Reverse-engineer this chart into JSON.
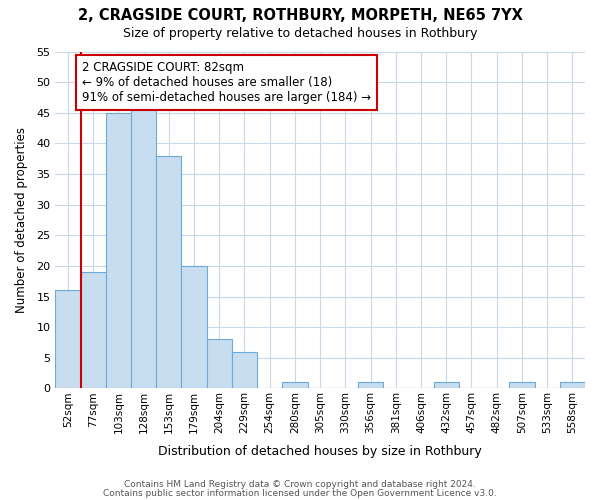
{
  "title1": "2, CRAGSIDE COURT, ROTHBURY, MORPETH, NE65 7YX",
  "title2": "Size of property relative to detached houses in Rothbury",
  "xlabel": "Distribution of detached houses by size in Rothbury",
  "ylabel": "Number of detached properties",
  "bar_labels": [
    "52sqm",
    "77sqm",
    "103sqm",
    "128sqm",
    "153sqm",
    "179sqm",
    "204sqm",
    "229sqm",
    "254sqm",
    "280sqm",
    "305sqm",
    "330sqm",
    "356sqm",
    "381sqm",
    "406sqm",
    "432sqm",
    "457sqm",
    "482sqm",
    "507sqm",
    "533sqm",
    "558sqm"
  ],
  "bar_values": [
    16,
    19,
    45,
    46,
    38,
    20,
    8,
    6,
    0,
    1,
    0,
    0,
    1,
    0,
    0,
    1,
    0,
    0,
    1,
    0,
    1
  ],
  "bar_color": "#c9ddf0",
  "bar_edgecolor": "#6aaad4",
  "vline_x": 0.5,
  "vline_color": "#cc0000",
  "annotation_text": "2 CRAGSIDE COURT: 82sqm\n← 9% of detached houses are smaller (18)\n91% of semi-detached houses are larger (184) →",
  "annotation_box_edgecolor": "#cc0000",
  "annotation_box_facecolor": "#ffffff",
  "ylim": [
    0,
    55
  ],
  "yticks": [
    0,
    5,
    10,
    15,
    20,
    25,
    30,
    35,
    40,
    45,
    50,
    55
  ],
  "footer1": "Contains HM Land Registry data © Crown copyright and database right 2024.",
  "footer2": "Contains public sector information licensed under the Open Government Licence v3.0.",
  "fig_background_color": "#ffffff",
  "plot_background_color": "#ffffff",
  "grid_color": "#c8d8e8"
}
